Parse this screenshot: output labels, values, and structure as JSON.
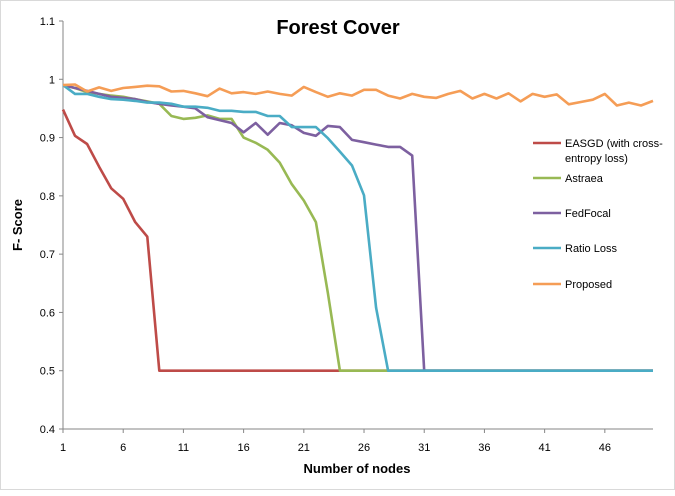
{
  "chart_data": {
    "type": "line",
    "title": "Forest Cover",
    "xlabel": "Number of nodes",
    "ylabel": "F- Score",
    "xlim": [
      1,
      50
    ],
    "ylim": [
      0.4,
      1.1
    ],
    "x_ticks": [
      1,
      6,
      11,
      16,
      21,
      26,
      31,
      36,
      41,
      46
    ],
    "y_ticks": [
      0.4,
      0.5,
      0.6,
      0.7,
      0.8,
      0.9,
      1,
      1.1
    ],
    "y_tick_labels": [
      "0.4",
      "0.5",
      "0.6",
      "0.7",
      "0.8",
      "0.9",
      "1",
      "1.1"
    ],
    "grid": false,
    "legend_position": "right",
    "x": [
      1,
      2,
      3,
      4,
      5,
      6,
      7,
      8,
      9,
      10,
      11,
      12,
      13,
      14,
      15,
      16,
      17,
      18,
      19,
      20,
      21,
      22,
      23,
      24,
      25,
      26,
      27,
      28,
      29,
      30,
      31,
      32,
      33,
      34,
      35,
      36,
      37,
      38,
      39,
      40,
      41,
      42,
      43,
      44,
      45,
      46,
      47,
      48,
      49,
      50
    ],
    "series": [
      {
        "name": "EASGD (with cross-entropy loss)",
        "legend_lines": [
          "EASGD (with cross-",
          "entropy loss)"
        ],
        "color": "#be4b48",
        "values": [
          0.948,
          0.903,
          0.889,
          0.85,
          0.813,
          0.795,
          0.755,
          0.73,
          0.5,
          0.5,
          0.5,
          0.5,
          0.5,
          0.5,
          0.5,
          0.5,
          0.5,
          0.5,
          0.5,
          0.5,
          0.5,
          0.5,
          0.5,
          0.5,
          0.5,
          0.5,
          0.5,
          0.5,
          0.5,
          0.5,
          0.5,
          0.5,
          0.5,
          0.5,
          0.5,
          0.5,
          0.5,
          0.5,
          0.5,
          0.5,
          0.5,
          0.5,
          0.5,
          0.5,
          0.5,
          0.5,
          0.5,
          0.5,
          0.5,
          0.5
        ]
      },
      {
        "name": "Astraea",
        "legend_lines": [
          "Astraea"
        ],
        "color": "#98b954",
        "values": [
          0.99,
          0.985,
          0.978,
          0.975,
          0.972,
          0.97,
          0.966,
          0.962,
          0.958,
          0.937,
          0.932,
          0.934,
          0.938,
          0.932,
          0.932,
          0.9,
          0.891,
          0.879,
          0.857,
          0.82,
          0.792,
          0.755,
          0.633,
          0.5,
          0.5,
          0.5,
          0.5,
          0.5,
          0.5,
          0.5,
          0.5,
          0.5,
          0.5,
          0.5,
          0.5,
          0.5,
          0.5,
          0.5,
          0.5,
          0.5,
          0.5,
          0.5,
          0.5,
          0.5,
          0.5,
          0.5,
          0.5,
          0.5,
          0.5,
          0.5
        ]
      },
      {
        "name": "FedFocal",
        "legend_lines": [
          "FedFocal"
        ],
        "color": "#7d60a0",
        "values": [
          0.99,
          0.985,
          0.98,
          0.975,
          0.97,
          0.968,
          0.966,
          0.961,
          0.958,
          0.955,
          0.953,
          0.95,
          0.935,
          0.93,
          0.925,
          0.909,
          0.925,
          0.905,
          0.925,
          0.921,
          0.908,
          0.903,
          0.92,
          0.918,
          0.896,
          0.892,
          0.888,
          0.884,
          0.884,
          0.869,
          0.5,
          0.5,
          0.5,
          0.5,
          0.5,
          0.5,
          0.5,
          0.5,
          0.5,
          0.5,
          0.5,
          0.5,
          0.5,
          0.5,
          0.5,
          0.5,
          0.5,
          0.5,
          0.5,
          0.5
        ]
      },
      {
        "name": "Ratio Loss",
        "legend_lines": [
          "Ratio Loss"
        ],
        "color": "#4aacc5",
        "values": [
          0.99,
          0.975,
          0.975,
          0.97,
          0.966,
          0.965,
          0.963,
          0.96,
          0.96,
          0.958,
          0.953,
          0.953,
          0.951,
          0.946,
          0.946,
          0.944,
          0.944,
          0.937,
          0.937,
          0.918,
          0.918,
          0.918,
          0.899,
          0.876,
          0.852,
          0.801,
          0.608,
          0.5,
          0.5,
          0.5,
          0.5,
          0.5,
          0.5,
          0.5,
          0.5,
          0.5,
          0.5,
          0.5,
          0.5,
          0.5,
          0.5,
          0.5,
          0.5,
          0.5,
          0.5,
          0.5,
          0.5,
          0.5,
          0.5,
          0.5
        ]
      },
      {
        "name": "Proposed",
        "legend_lines": [
          "Proposed"
        ],
        "color": "#f59d56",
        "values": [
          0.99,
          0.991,
          0.979,
          0.986,
          0.98,
          0.985,
          0.987,
          0.989,
          0.988,
          0.979,
          0.98,
          0.976,
          0.971,
          0.984,
          0.976,
          0.978,
          0.975,
          0.979,
          0.975,
          0.972,
          0.987,
          0.978,
          0.97,
          0.976,
          0.972,
          0.982,
          0.982,
          0.972,
          0.967,
          0.975,
          0.97,
          0.968,
          0.975,
          0.98,
          0.967,
          0.975,
          0.967,
          0.976,
          0.962,
          0.975,
          0.97,
          0.974,
          0.957,
          0.961,
          0.965,
          0.975,
          0.955,
          0.96,
          0.955,
          0.963
        ]
      }
    ]
  }
}
